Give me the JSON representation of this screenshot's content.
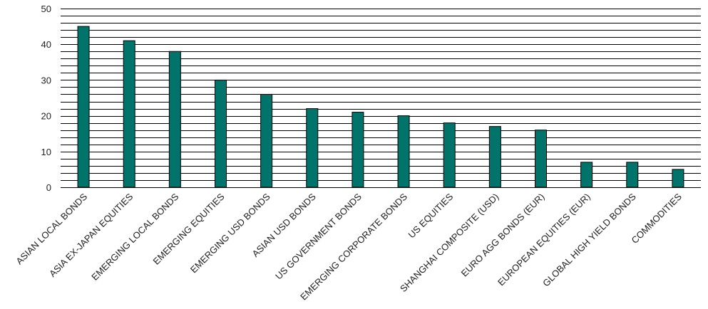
{
  "chart_data": {
    "type": "bar",
    "categories": [
      "ASIAN LOCAL BONDS",
      "ASIA EX-JAPAN EQUITIES",
      "EMERGING LOCAL BONDS",
      "EMERGING EQUITIES",
      "EMERGING USD BONDS",
      "ASIAN USD BONDS",
      "US GOVERNMENT BONDS",
      "EMERGING CORPORATE BONDS",
      "US EQUITIES",
      "SHANGHAI COMPOSITE (USD)",
      "EURO AGG BONDS (EUR)",
      "EUROPEAN EQUITIES (EUR)",
      "GLOBAL HIGH YIELD BONDS",
      "COMMODITIES"
    ],
    "values": [
      45,
      41,
      38,
      30,
      26,
      22,
      21,
      20,
      18,
      17,
      16,
      7,
      7,
      5
    ],
    "color": "#00736b",
    "ylim": [
      0,
      50
    ],
    "yticks": [
      0,
      10,
      20,
      30,
      40,
      50
    ],
    "grid": true,
    "ygrid": [
      0,
      2,
      4,
      6,
      8,
      10,
      12,
      14,
      16,
      18,
      20,
      22,
      24,
      26,
      28,
      30,
      32,
      34,
      36,
      38,
      40,
      42,
      44,
      46,
      48,
      50
    ]
  }
}
